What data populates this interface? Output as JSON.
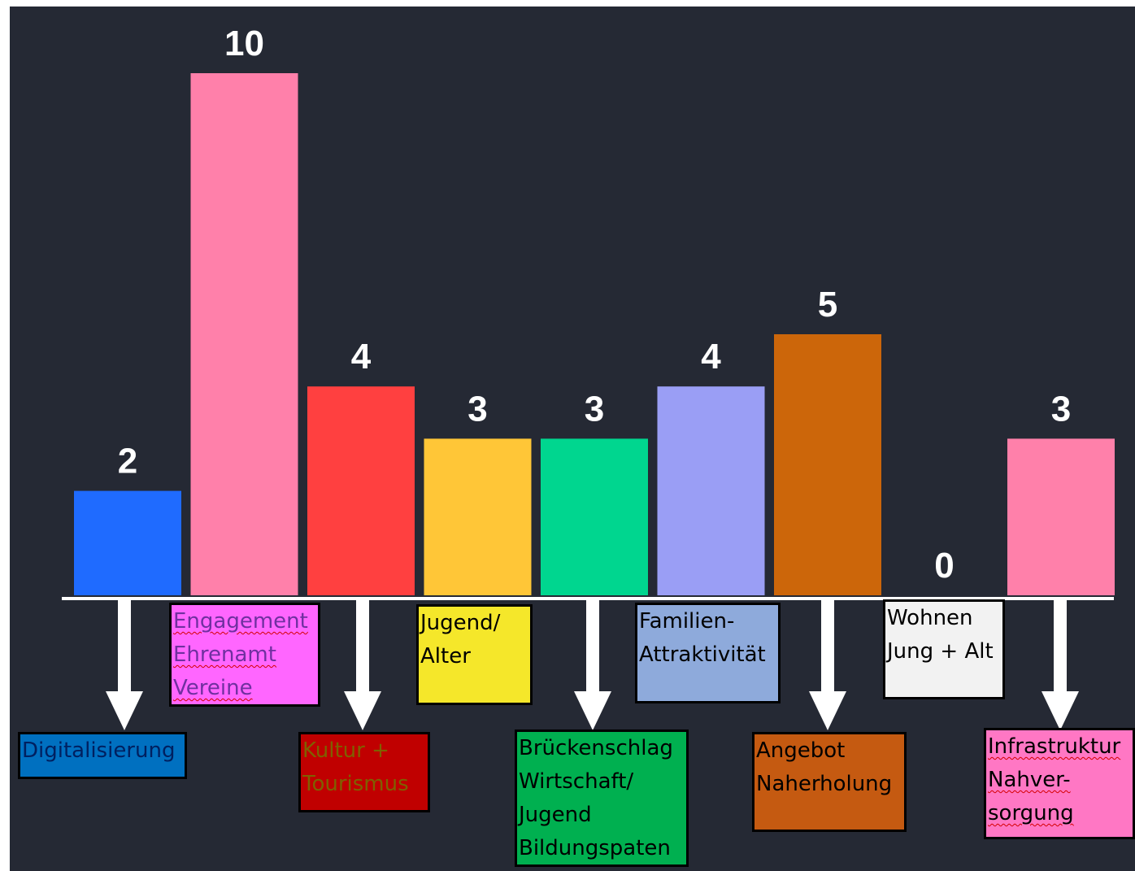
{
  "colors": {
    "background": "#252934",
    "axis": "#ffffff",
    "value_label": "#ffffff",
    "arrow": "#ffffff",
    "label_box_border": "#000000"
  },
  "chart_data": {
    "type": "bar",
    "categories": [
      "Digitalisierung",
      "Engagement Ehrenamt Vereine",
      "Kultur + Tourismus",
      "Jugend/ Alter",
      "Brückenschlag Wirtschaft/ Jugend Bildungspaten",
      "Familien- Attraktivität",
      "Angebot Naherholung",
      "Wohnen Jung + Alt",
      "Infrastruktur Nahver- sorgung"
    ],
    "values": [
      2,
      10,
      4,
      3,
      3,
      4,
      5,
      0,
      3
    ],
    "value_labels": [
      "2",
      "10",
      "4",
      "3",
      "3",
      "4",
      "5",
      "0",
      "3"
    ],
    "bar_colors": [
      "#1f6bff",
      "#ff80aa",
      "#ff4040",
      "#ffc637",
      "#00d68f",
      "#9a9ef5",
      "#cc660a",
      "#252934",
      "#ff80aa"
    ],
    "ylim": [
      0,
      10
    ],
    "grid": false,
    "title": "",
    "xlabel": "",
    "ylabel": ""
  },
  "category_labels": [
    {
      "lines": [
        "Digitalisierung"
      ],
      "background": "#0070c0",
      "text_color": "#002060",
      "spellcheck": false
    },
    {
      "lines": [
        "Engagement",
        "Ehrenamt",
        "Vereine"
      ],
      "background": "#ff66ff",
      "text_color": "#7030a0",
      "spellcheck": true
    },
    {
      "lines": [
        "Kultur +",
        "Tourismus"
      ],
      "background": "#c00000",
      "text_color": "#7f6000",
      "spellcheck": false
    },
    {
      "lines": [
        "Jugend/",
        "Alter"
      ],
      "background": "#f5e72a",
      "text_color": "#000000",
      "spellcheck": false
    },
    {
      "lines": [
        "Brückenschlag",
        "Wirtschaft/",
        "Jugend",
        "Bildungspaten"
      ],
      "background": "#00b050",
      "text_color": "#000000",
      "spellcheck": false
    },
    {
      "lines": [
        "Familien-",
        "Attraktivität"
      ],
      "background": "#8eaadb",
      "text_color": "#000000",
      "spellcheck": false
    },
    {
      "lines": [
        "Angebot",
        "Naherholung"
      ],
      "background": "#c55a11",
      "text_color": "#000000",
      "spellcheck": false
    },
    {
      "lines": [
        "Wohnen",
        "Jung + Alt"
      ],
      "background": "#f2f2f2",
      "text_color": "#000000",
      "spellcheck": false
    },
    {
      "lines": [
        "Infrastruktur",
        "Nahver-",
        "sorgung"
      ],
      "background": "#ff77c4",
      "text_color": "#000000",
      "spellcheck": true
    }
  ]
}
